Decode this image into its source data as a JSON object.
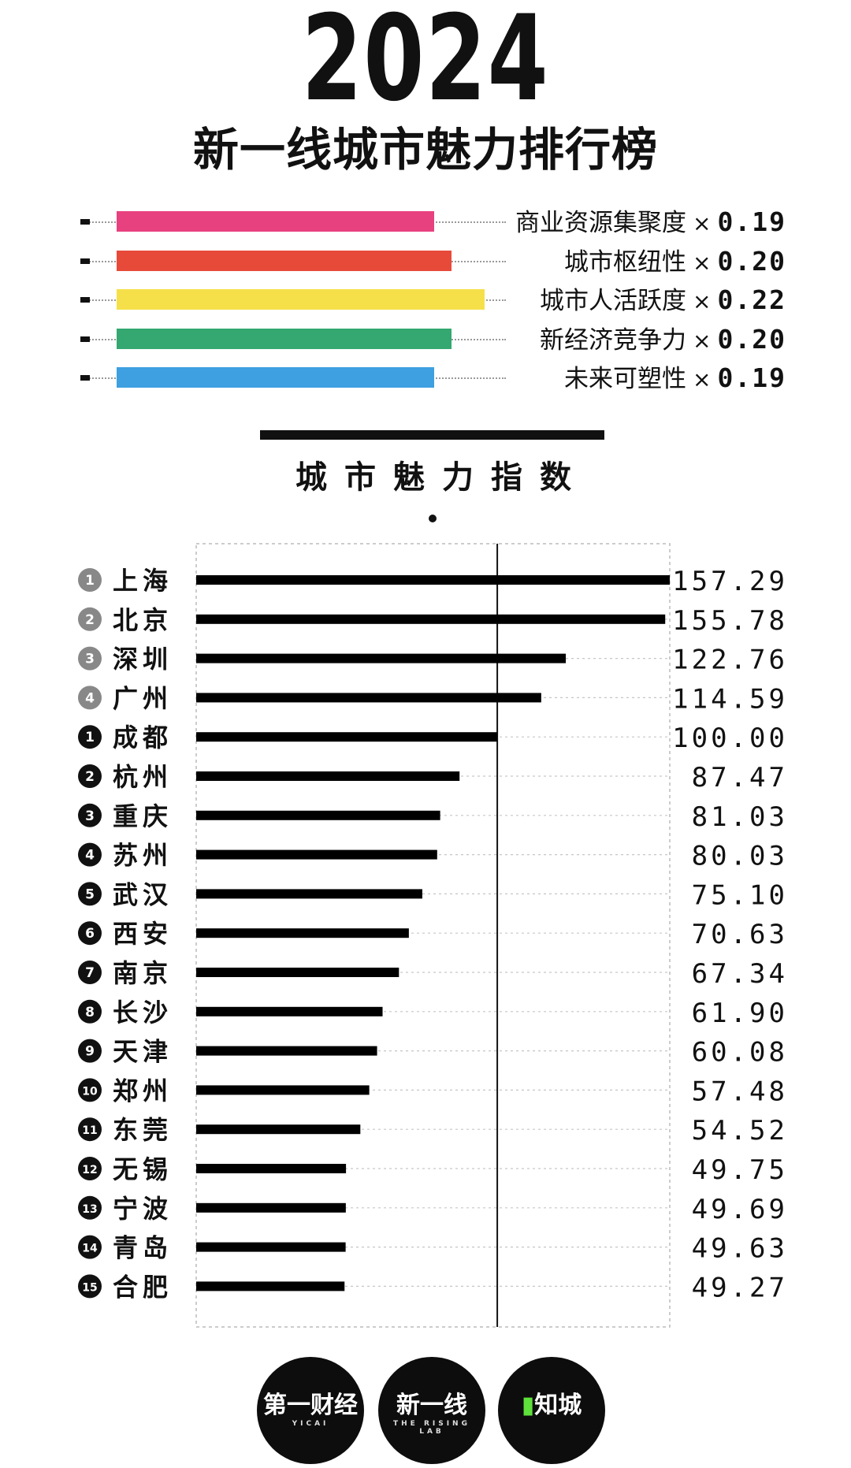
{
  "header": {
    "year": "2024",
    "subtitle": "新一线城市魅力排行榜"
  },
  "weights": [
    {
      "label": "商业资源集聚度",
      "sign": "×",
      "weight": "0.19",
      "value": 0.19,
      "color": "#e8417f"
    },
    {
      "label": "城市枢纽性",
      "sign": "×",
      "weight": "0.20",
      "value": 0.2,
      "color": "#e84a3a"
    },
    {
      "label": "城市人活跃度",
      "sign": "×",
      "weight": "0.22",
      "value": 0.22,
      "color": "#f5e04a"
    },
    {
      "label": "新经济竞争力",
      "sign": "×",
      "weight": "0.20",
      "value": 0.2,
      "color": "#34a870"
    },
    {
      "label": "未来可塑性",
      "sign": "×",
      "weight": "0.19",
      "value": 0.19,
      "color": "#3ea0e0"
    }
  ],
  "section": {
    "title": "城市魅力指数"
  },
  "chart_data": {
    "type": "bar",
    "orientation": "horizontal",
    "title": "城市魅力指数",
    "reference_line": 100,
    "xlim": [
      0,
      157.29
    ],
    "categories": [
      "上海",
      "北京",
      "深圳",
      "广州",
      "成都",
      "杭州",
      "重庆",
      "苏州",
      "武汉",
      "西安",
      "南京",
      "长沙",
      "天津",
      "郑州",
      "东莞",
      "无锡",
      "宁波",
      "青岛",
      "合肥"
    ],
    "ranks": [
      "1",
      "2",
      "3",
      "4",
      "1",
      "2",
      "3",
      "4",
      "5",
      "6",
      "7",
      "8",
      "9",
      "10",
      "11",
      "12",
      "13",
      "14",
      "15"
    ],
    "rank_colors": [
      "#888888",
      "#888888",
      "#888888",
      "#888888",
      "#111111",
      "#111111",
      "#111111",
      "#111111",
      "#111111",
      "#111111",
      "#111111",
      "#111111",
      "#111111",
      "#111111",
      "#111111",
      "#111111",
      "#111111",
      "#111111",
      "#111111"
    ],
    "labels": [
      "157.29",
      "155.78",
      "122.76",
      "114.59",
      "100.00",
      "87.47",
      "81.03",
      "80.03",
      "75.10",
      "70.63",
      "67.34",
      "61.90",
      "60.08",
      "57.48",
      "54.52",
      "49.75",
      "49.69",
      "49.63",
      "49.27"
    ],
    "values": [
      157.29,
      155.78,
      122.76,
      114.59,
      100.0,
      87.47,
      81.03,
      80.03,
      75.1,
      70.63,
      67.34,
      61.9,
      60.08,
      57.48,
      54.52,
      49.75,
      49.69,
      49.63,
      49.27
    ],
    "bar_color": "#000000"
  },
  "brands": [
    {
      "text": "第一财经",
      "sub": "YICAI"
    },
    {
      "text": "新一线",
      "sub": "THE RISING LAB"
    },
    {
      "text": "知城",
      "sub": ""
    }
  ]
}
